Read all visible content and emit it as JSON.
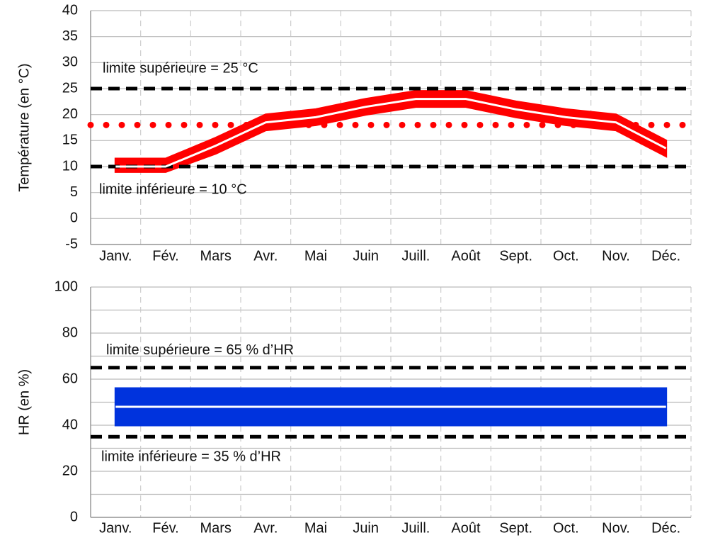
{
  "chart_data": [
    {
      "type": "line",
      "y_label": "Température (en °C)",
      "categories": [
        "Janv.",
        "Fév.",
        "Mars",
        "Avr.",
        "Mai",
        "Juin",
        "Juill.",
        "Août",
        "Sept.",
        "Oct.",
        "Nov.",
        "Déc."
      ],
      "ylim": [
        -5,
        40
      ],
      "yticks": [
        -5,
        0,
        5,
        10,
        15,
        20,
        25,
        30,
        35,
        40
      ],
      "grid": true,
      "band": {
        "color": "#ff0000",
        "low": [
          9,
          9,
          12.5,
          17,
          18,
          20,
          21.5,
          21.5,
          19.5,
          18,
          17,
          12
        ],
        "high": [
          11.5,
          11.5,
          15.5,
          20,
          21,
          23,
          24.5,
          24.5,
          22.5,
          21,
          20,
          15
        ]
      },
      "series": [
        {
          "color": "#ffffff",
          "values": [
            10,
            10,
            14,
            18.5,
            19.5,
            21.5,
            23,
            23,
            21,
            19.5,
            18.5,
            13.5
          ]
        }
      ],
      "reference_lines": [
        {
          "value": 25,
          "color": "#000000",
          "style": "dashed"
        },
        {
          "value": 10,
          "color": "#000000",
          "style": "dashed"
        },
        {
          "value": 18,
          "color": "#ff0000",
          "style": "dotted"
        }
      ],
      "annotations": [
        "limite supérieure = 25 °C",
        "limite inférieure = 10 °C"
      ]
    },
    {
      "type": "line",
      "y_label": "HR (en %)",
      "categories": [
        "Janv.",
        "Fév.",
        "Mars",
        "Avr.",
        "Mai",
        "Juin",
        "Juill.",
        "Août",
        "Sept.",
        "Oct.",
        "Nov.",
        "Déc."
      ],
      "ylim": [
        0,
        100
      ],
      "yticks": [
        0,
        20,
        40,
        60,
        80,
        100
      ],
      "minor_yticks": [
        10,
        30,
        50,
        70,
        90
      ],
      "grid": true,
      "band": {
        "color": "#0033dd",
        "low": [
          40,
          40,
          40,
          40,
          40,
          40,
          40,
          40,
          40,
          40,
          40,
          40
        ],
        "high": [
          56,
          56,
          56,
          56,
          56,
          56,
          56,
          56,
          56,
          56,
          56,
          56
        ]
      },
      "series": [
        {
          "color": "#ffffff",
          "values": [
            48,
            48,
            48,
            48,
            48,
            48,
            48,
            48,
            48,
            48,
            48,
            48
          ]
        }
      ],
      "reference_lines": [
        {
          "value": 65,
          "color": "#000000",
          "style": "dashed"
        },
        {
          "value": 35,
          "color": "#000000",
          "style": "dashed"
        }
      ],
      "annotations": [
        "limite supérieure = 65 % d’HR",
        "limite inférieure = 35 % d’HR"
      ]
    }
  ]
}
